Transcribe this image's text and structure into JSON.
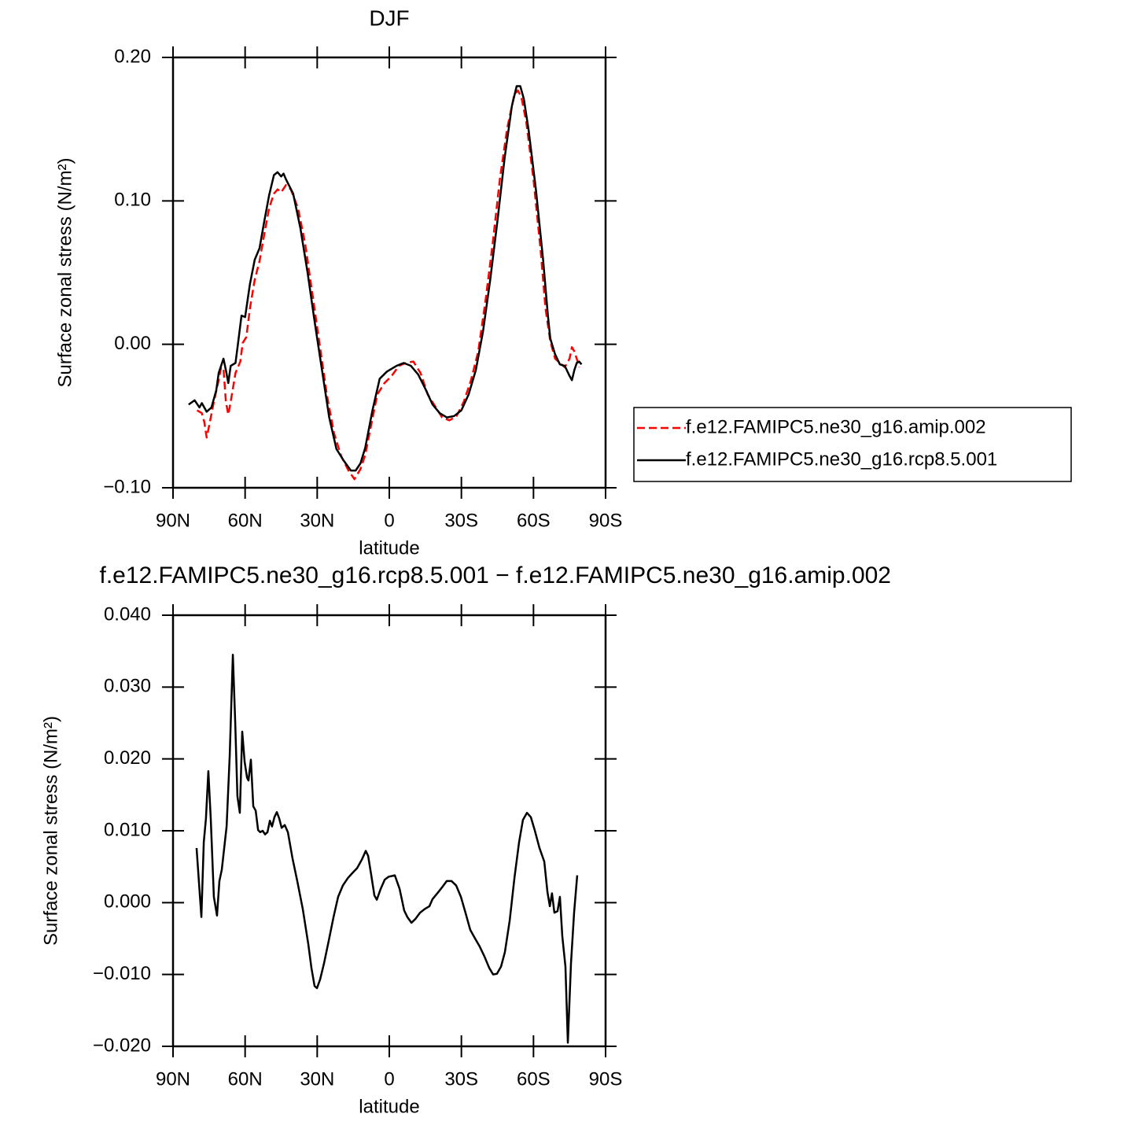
{
  "chart_data": [
    {
      "type": "line",
      "title": "DJF",
      "xlabel": "latitude",
      "ylabel": "Surface zonal stress (N/m²)",
      "xlim": [
        90,
        -90
      ],
      "xticks": [
        {
          "value": 90,
          "label": "90N"
        },
        {
          "value": 60,
          "label": "60N"
        },
        {
          "value": 30,
          "label": "30N"
        },
        0,
        {
          "value": -30,
          "label": "30S"
        },
        {
          "value": -60,
          "label": "60S"
        },
        {
          "value": -90,
          "label": "90S"
        }
      ],
      "ylim": [
        -0.1,
        0.2
      ],
      "yticks": [
        {
          "value": -0.1,
          "label": "−0.10"
        },
        {
          "value": 0,
          "label": "0.00"
        },
        {
          "value": 0.1,
          "label": "0.10"
        },
        {
          "value": 0.2,
          "label": "0.20"
        }
      ],
      "legend": "right",
      "series": [
        {
          "name": "f.e12.FAMIPC5.ne30_g16.amip.002",
          "color": "#ff0000",
          "linestyle": "dashed",
          "x": [
            80,
            78,
            77,
            76,
            75,
            73,
            71,
            70,
            69,
            68,
            67,
            66,
            64,
            62,
            61,
            59.5,
            58,
            56,
            54,
            52,
            50,
            48,
            46.5,
            45,
            43,
            41,
            38,
            35,
            32,
            29,
            26,
            23,
            20,
            17,
            14.5,
            12,
            10,
            8,
            5,
            2,
            -1,
            -4,
            -7,
            -10,
            -13,
            -16,
            -19,
            -22,
            -25,
            -28,
            -31,
            -34,
            -37,
            -40,
            -43,
            -46,
            -49,
            -52,
            -53.5,
            -55,
            -57,
            -60,
            -63,
            -65,
            -67,
            -69,
            -71,
            -73,
            -75,
            -76,
            -77,
            -78,
            -79
          ],
          "values": [
            -0.046,
            -0.048,
            -0.054,
            -0.065,
            -0.057,
            -0.04,
            -0.025,
            -0.016,
            -0.017,
            -0.04,
            -0.049,
            -0.04,
            -0.02,
            -0.012,
            0.001,
            0.005,
            0.025,
            0.045,
            0.058,
            0.077,
            0.095,
            0.105,
            0.108,
            0.106,
            0.111,
            0.108,
            0.095,
            0.07,
            0.035,
            0.0,
            -0.035,
            -0.062,
            -0.078,
            -0.088,
            -0.094,
            -0.087,
            -0.077,
            -0.06,
            -0.035,
            -0.027,
            -0.022,
            -0.015,
            -0.013,
            -0.012,
            -0.02,
            -0.035,
            -0.043,
            -0.051,
            -0.053,
            -0.05,
            -0.04,
            -0.025,
            -0.005,
            0.03,
            0.07,
            0.115,
            0.15,
            0.174,
            0.177,
            0.172,
            0.155,
            0.115,
            0.065,
            0.025,
            0.002,
            -0.01,
            -0.013,
            -0.016,
            -0.01,
            -0.002,
            -0.005,
            -0.01,
            -0.016
          ]
        },
        {
          "name": "f.e12.FAMIPC5.ne30_g16.rcp8.5.001",
          "color": "#000000",
          "linestyle": "solid",
          "x": [
            83.5,
            81,
            79,
            78,
            76,
            74,
            72,
            71,
            69,
            68,
            67,
            66,
            64,
            63,
            61.5,
            60,
            58,
            56,
            54,
            52,
            50,
            48,
            46.5,
            45,
            44,
            43,
            40,
            37,
            34,
            31,
            28,
            25,
            22,
            19,
            16,
            14,
            12,
            10,
            7,
            4,
            1,
            -3,
            -6,
            -9,
            -12,
            -15,
            -18,
            -21,
            -24,
            -27,
            -30,
            -33,
            -36,
            -39,
            -42,
            -45,
            -48,
            -51,
            -53,
            -54.5,
            -56,
            -58,
            -61,
            -64,
            -66,
            -67,
            -69,
            -71,
            -73,
            -75,
            -76,
            -77,
            -78,
            -79,
            -80
          ],
          "values": [
            -0.042,
            -0.039,
            -0.044,
            -0.041,
            -0.047,
            -0.044,
            -0.032,
            -0.02,
            -0.01,
            -0.018,
            -0.027,
            -0.015,
            -0.013,
            0.0,
            0.02,
            0.019,
            0.042,
            0.059,
            0.067,
            0.086,
            0.104,
            0.118,
            0.12,
            0.117,
            0.119,
            0.115,
            0.105,
            0.081,
            0.05,
            0.015,
            -0.018,
            -0.051,
            -0.073,
            -0.081,
            -0.088,
            -0.088,
            -0.083,
            -0.072,
            -0.046,
            -0.024,
            -0.019,
            -0.015,
            -0.013,
            -0.015,
            -0.021,
            -0.031,
            -0.042,
            -0.048,
            -0.051,
            -0.05,
            -0.046,
            -0.035,
            -0.018,
            0.009,
            0.045,
            0.086,
            0.13,
            0.166,
            0.18,
            0.18,
            0.171,
            0.149,
            0.108,
            0.059,
            0.02,
            0.004,
            -0.007,
            -0.014,
            -0.015,
            -0.022,
            -0.025,
            -0.018,
            -0.013,
            -0.012,
            -0.014
          ]
        }
      ]
    },
    {
      "type": "line",
      "title": "f.e12.FAMIPC5.ne30_g16.rcp8.5.001 − f.e12.FAMIPC5.ne30_g16.amip.002",
      "xlabel": "latitude",
      "ylabel": "Surface zonal stress (N/m²)",
      "xlim": [
        90,
        -90
      ],
      "xticks": [
        {
          "value": 90,
          "label": "90N"
        },
        {
          "value": 60,
          "label": "60N"
        },
        {
          "value": 30,
          "label": "30N"
        },
        0,
        {
          "value": -30,
          "label": "30S"
        },
        {
          "value": -60,
          "label": "60S"
        },
        {
          "value": -90,
          "label": "90S"
        }
      ],
      "ylim": [
        -0.02,
        0.04
      ],
      "yticks": [
        {
          "value": -0.02,
          "label": "−0.020"
        },
        {
          "value": -0.01,
          "label": "−0.010"
        },
        {
          "value": 0,
          "label": "0.000"
        },
        {
          "value": 0.01,
          "label": "0.010"
        },
        {
          "value": 0.02,
          "label": "0.020"
        },
        {
          "value": 0.03,
          "label": "0.030"
        },
        {
          "value": 0.04,
          "label": "0.040"
        }
      ],
      "series": [
        {
          "color": "#000000",
          "linestyle": "solid",
          "x": [
            80.2,
            78.2,
            77.2,
            76.3,
            75.3,
            74.3,
            73,
            71.7,
            70.7,
            69.7,
            67.7,
            66.4,
            65.1,
            64.1,
            63.2,
            62.2,
            61.2,
            60.2,
            59.2,
            58.6,
            57.6,
            56.6,
            55.6,
            54.6,
            53.7,
            52.7,
            51.7,
            50.7,
            49.7,
            48.8,
            47.8,
            46.8,
            45.8,
            44.8,
            43.5,
            42.2,
            40.3,
            38.3,
            36,
            33.7,
            32.4,
            31.1,
            30.1,
            28.8,
            27.2,
            25.2,
            23.2,
            21.3,
            19.3,
            17.3,
            15.4,
            13.4,
            11.4,
            9.8,
            8.8,
            7.5,
            6.2,
            5.2,
            3.6,
            1.9,
            0.3,
            -2.3,
            -4.3,
            -6.2,
            -7.5,
            -9.2,
            -10.8,
            -12.8,
            -14.7,
            -16.7,
            -18,
            -20,
            -21.9,
            -23.9,
            -25.9,
            -27.8,
            -29.8,
            -31.7,
            -33.7,
            -35.7,
            -37.6,
            -39.6,
            -41.6,
            -43.2,
            -44.8,
            -46.5,
            -48.1,
            -50.1,
            -52.1,
            -54,
            -55.6,
            -57.3,
            -58.9,
            -60.5,
            -62.5,
            -64.5,
            -65.8,
            -66.8,
            -67.7,
            -68.7,
            -70,
            -71,
            -72,
            -73.3,
            -74.3,
            -75.6,
            -76.9,
            -78.2
          ],
          "values": [
            0.0076,
            -0.002,
            0.0084,
            0.0117,
            0.0183,
            0.0117,
            0.0008,
            -0.0018,
            0.003,
            0.0046,
            0.0106,
            0.0205,
            0.0345,
            0.0249,
            0.0148,
            0.0125,
            0.0238,
            0.0196,
            0.0174,
            0.017,
            0.0199,
            0.0134,
            0.0128,
            0.0101,
            0.0098,
            0.01,
            0.0095,
            0.0098,
            0.0114,
            0.0106,
            0.0119,
            0.0126,
            0.0117,
            0.0104,
            0.0108,
            0.0098,
            0.0062,
            0.003,
            -0.0009,
            -0.0058,
            -0.0091,
            -0.0116,
            -0.0119,
            -0.0107,
            -0.0085,
            -0.0053,
            -0.002,
            0.0008,
            0.0024,
            0.0034,
            0.0041,
            0.0048,
            0.006,
            0.0072,
            0.0065,
            0.0038,
            0.001,
            0.0004,
            0.0019,
            0.0032,
            0.0036,
            0.0038,
            0.0019,
            -0.0011,
            -0.002,
            -0.0028,
            -0.0023,
            -0.0014,
            -0.0009,
            -0.0005,
            0.0005,
            0.0013,
            0.0021,
            0.003,
            0.003,
            0.0024,
            0.0008,
            -0.0014,
            -0.0038,
            -0.005,
            -0.0061,
            -0.0075,
            -0.0091,
            -0.01,
            -0.0099,
            -0.0089,
            -0.0069,
            -0.0025,
            0.0035,
            0.0084,
            0.0115,
            0.0125,
            0.0119,
            0.0101,
            0.0076,
            0.0057,
            0.0015,
            -0.0005,
            0.0013,
            -0.0014,
            -0.0012,
            0.0008,
            -0.0047,
            -0.0089,
            -0.0195,
            -0.0085,
            -0.0014,
            0.0038
          ]
        }
      ]
    }
  ]
}
